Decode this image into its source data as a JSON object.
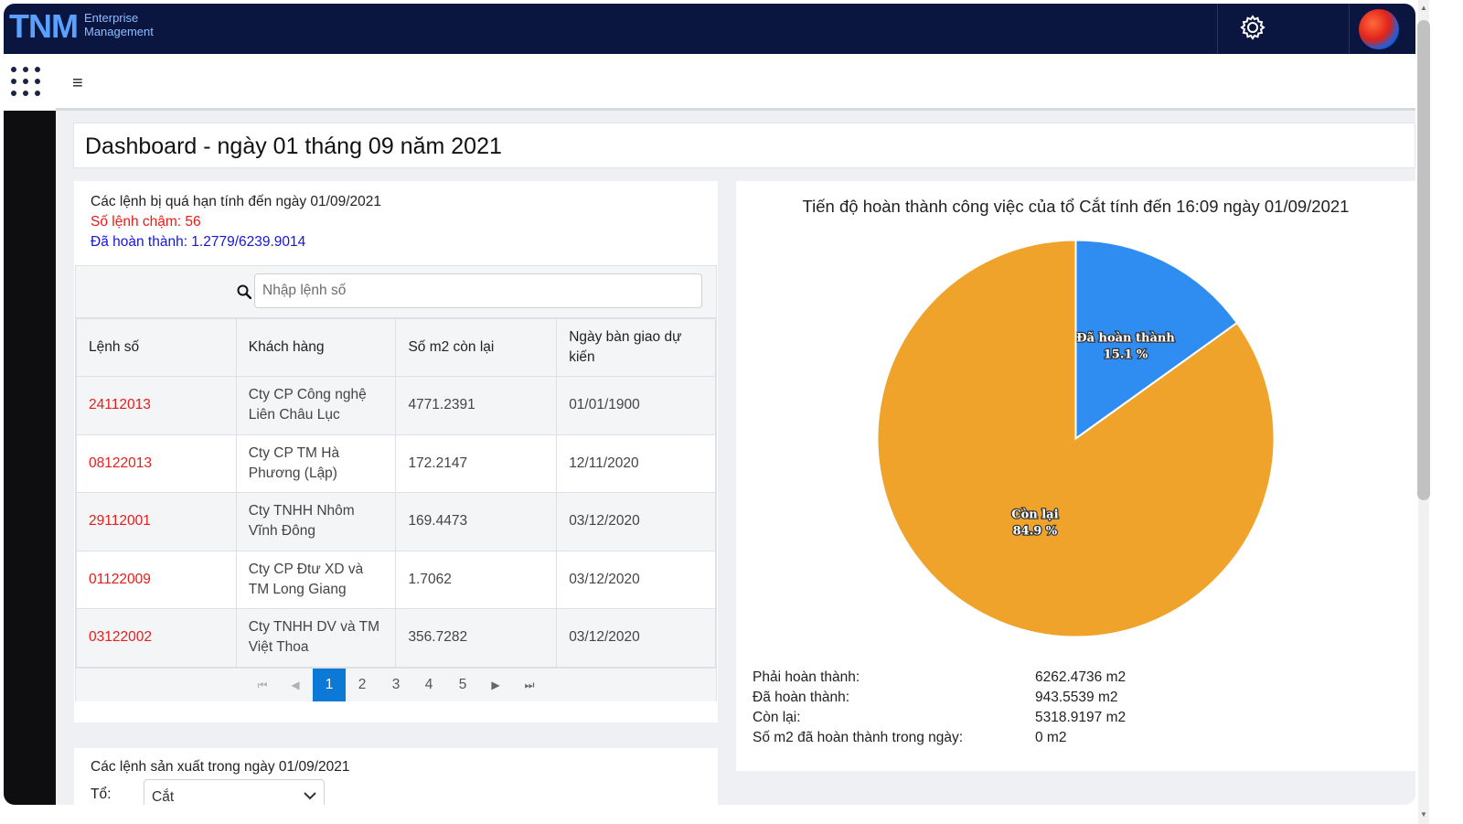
{
  "brand": {
    "logo": "TNM",
    "line1": "Enterprise",
    "line2": "Management"
  },
  "icons": {
    "settings": "gear-icon",
    "apps": "grid-icon",
    "menu": "hamburger-icon",
    "search": "search-icon"
  },
  "nav": {
    "menu_glyph": "≡"
  },
  "page": {
    "title": "Dashboard - ngày 01 tháng 09 năm 2021"
  },
  "overdue": {
    "heading": "Các lệnh bị quá hạn tính đến ngày 01/09/2021",
    "late_count": "Số lệnh chậm: 56",
    "completed": "Đã hoàn thành: 1.2779/6239.9014",
    "search_placeholder": "Nhập lệnh số",
    "columns": [
      "Lệnh số",
      "Khách hàng",
      "Số m2 còn lại",
      "Ngày bàn giao dự kiến"
    ],
    "rows": [
      {
        "code": "24112013",
        "customer": "Cty CP Công nghệ Liên Châu Lục",
        "remaining": "4771.2391",
        "date": "01/01/1900"
      },
      {
        "code": "08122013",
        "customer": "Cty CP TM Hà Phương (Lập)",
        "remaining": "172.2147",
        "date": "12/11/2020"
      },
      {
        "code": "29112001",
        "customer": "Cty TNHH Nhôm Vĩnh Đông",
        "remaining": "169.4473",
        "date": "03/12/2020"
      },
      {
        "code": "01122009",
        "customer": "Cty CP Đtư XD và TM Long Giang",
        "remaining": "1.7062",
        "date": "03/12/2020"
      },
      {
        "code": "03122002",
        "customer": "Cty TNHH DV và TM Việt Thoa",
        "remaining": "356.7282",
        "date": "03/12/2020"
      }
    ],
    "pagination": {
      "first": "⏮",
      "prev": "◀",
      "pages": [
        "1",
        "2",
        "3",
        "4",
        "5"
      ],
      "current": "1",
      "next": "▶",
      "last": "⏭"
    }
  },
  "production": {
    "heading": "Các lệnh sản xuất trong ngày 01/09/2021",
    "team_label": "Tổ:",
    "team_value": "Cắt"
  },
  "progress": {
    "title": "Tiến độ hoàn thành công việc của tổ Cắt tính đến 16:09 ngày 01/09/2021",
    "stats": [
      {
        "label": "Phải hoàn thành:",
        "value": "6262.4736 m2"
      },
      {
        "label": "Đã hoàn thành:",
        "value": "943.5539 m2"
      },
      {
        "label": "Còn lại:",
        "value": "5318.9197 m2"
      },
      {
        "label": "Số m2 đã hoàn thành trong ngày:",
        "value": "0 m2"
      }
    ]
  },
  "chart_data": {
    "type": "pie",
    "title": "Tiến độ hoàn thành công việc của tổ Cắt tính đến 16:09 ngày 01/09/2021",
    "categories": [
      "Đã hoàn thành",
      "Còn lại"
    ],
    "values": [
      15.1,
      84.9
    ],
    "labels": [
      "15.1 %",
      "84.9 %"
    ],
    "colors": [
      "#2f8cf0",
      "#f0a32a"
    ]
  }
}
